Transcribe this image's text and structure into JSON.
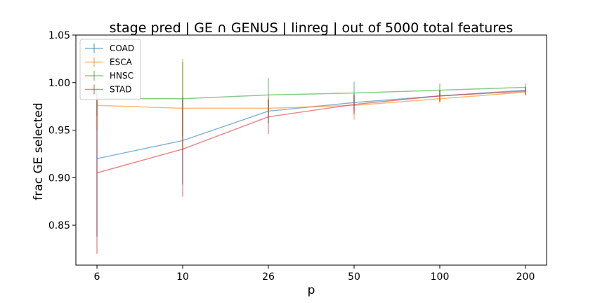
{
  "chart_data": {
    "type": "line",
    "title": "stage pred | GE ∩ GENUS | linreg | out of 5000 total features",
    "xlabel": "p",
    "ylabel": "frac GE selected",
    "x": [
      "6",
      "10",
      "26",
      "50",
      "100",
      "200"
    ],
    "ylim": [
      0.808,
      1.05
    ],
    "yticks": [
      "0.85",
      "0.90",
      "0.95",
      "1.00",
      "1.05"
    ],
    "grid": false,
    "legend_position": "top-left",
    "series": [
      {
        "name": "COAD",
        "color": "#1f77b4",
        "values": [
          0.92,
          0.939,
          0.97,
          0.979,
          0.986,
          0.992
        ],
        "err_low": [
          0.838,
          0.893,
          0.957,
          0.97,
          0.98,
          0.988
        ],
        "err_high": [
          0.983,
          0.985,
          0.982,
          0.988,
          0.992,
          0.996
        ]
      },
      {
        "name": "ESCA",
        "color": "#ff7f0e",
        "values": [
          0.976,
          0.973,
          0.973,
          0.976,
          0.983,
          0.99
        ],
        "err_low": [
          0.95,
          0.928,
          0.963,
          0.961,
          0.978,
          0.986
        ],
        "err_high": [
          0.993,
          1.025,
          0.985,
          0.987,
          0.988,
          0.994
        ]
      },
      {
        "name": "HNSC",
        "color": "#2ca02c",
        "values": [
          0.983,
          0.983,
          0.987,
          0.989,
          0.992,
          0.995
        ],
        "err_low": [
          0.965,
          0.944,
          0.968,
          0.978,
          0.986,
          0.991
        ],
        "err_high": [
          0.995,
          1.022,
          1.005,
          1.001,
          0.999,
          0.999
        ]
      },
      {
        "name": "STAD",
        "color": "#d62728",
        "values": [
          0.905,
          0.93,
          0.964,
          0.977,
          0.986,
          0.991
        ],
        "err_low": [
          0.82,
          0.88,
          0.946,
          0.967,
          0.98,
          0.987
        ],
        "err_high": [
          0.988,
          0.982,
          0.982,
          0.987,
          0.992,
          0.995
        ]
      }
    ]
  }
}
